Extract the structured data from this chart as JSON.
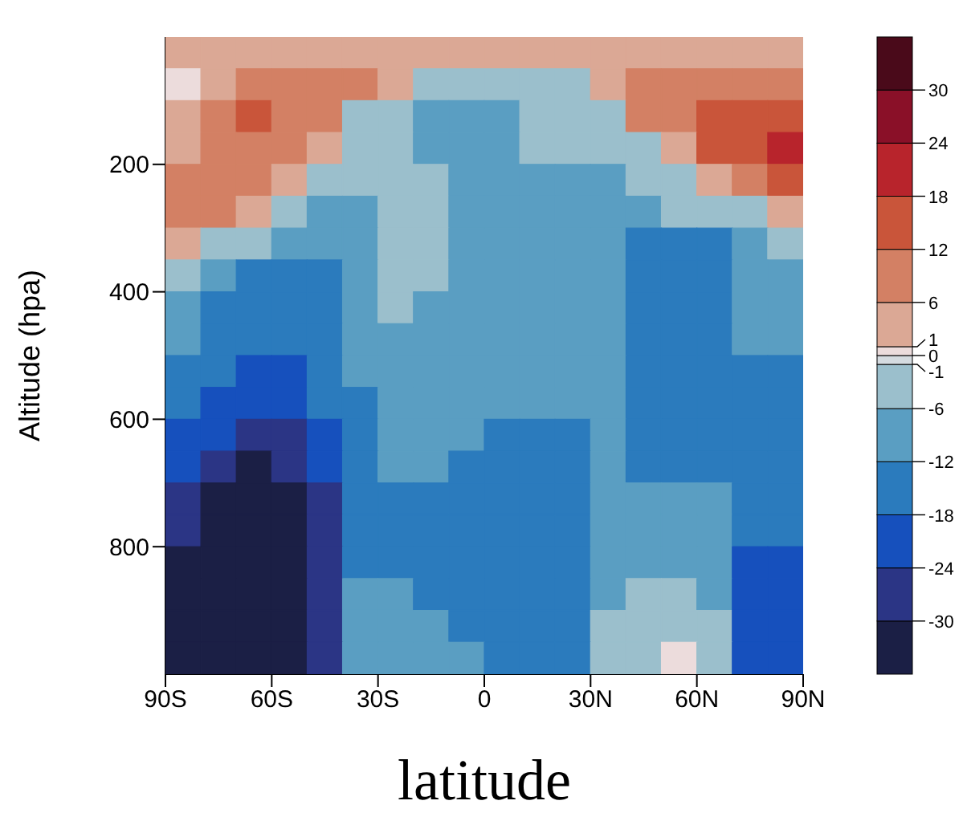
{
  "chart_data": {
    "type": "heatmap",
    "xlabel": "latitude",
    "ylabel": "Altitude (hpa)",
    "xlim": [
      -90,
      90
    ],
    "xticks": [
      {
        "value": -90,
        "label": "90S"
      },
      {
        "value": -60,
        "label": "60S"
      },
      {
        "value": -30,
        "label": "30S"
      },
      0,
      {
        "value": 30,
        "label": "30N"
      },
      {
        "value": 60,
        "label": "60N"
      },
      {
        "value": 90,
        "label": "90N"
      }
    ],
    "ylim": [
      1000,
      0
    ],
    "yticks": [
      200,
      400,
      600,
      800
    ],
    "clim": [
      -36,
      36
    ],
    "cticks": [
      -30,
      -24,
      -18,
      -12,
      -6,
      -1,
      0,
      1,
      6,
      12,
      18,
      24,
      30
    ],
    "colors": [
      "#1b1f45",
      "#2b3585",
      "#1650bd",
      "#2b7bbd",
      "#5a9ec2",
      "#9bbfcc",
      "#d5dbe0",
      "#ecdcdc",
      "#dba895",
      "#d38064",
      "#c9553a",
      "#b8242c",
      "#8a1028",
      "#4a0a1a"
    ],
    "cells": [
      [
        3,
        3,
        3,
        3,
        3,
        3,
        3,
        3,
        3,
        3,
        3,
        3,
        3,
        3,
        3,
        3,
        3,
        3
      ],
      [
        0.5,
        3,
        9,
        9,
        9,
        9,
        3,
        -3,
        -3,
        -3,
        -3,
        -3,
        3,
        9,
        9,
        9,
        9,
        9
      ],
      [
        3,
        9,
        15,
        9,
        9,
        -3,
        -3,
        -9,
        -9,
        -9,
        -3,
        -3,
        -3,
        9,
        9,
        15,
        15,
        15
      ],
      [
        3,
        9,
        9,
        9,
        3,
        -3,
        -3,
        -9,
        -9,
        -9,
        -3,
        -3,
        -3,
        -3,
        3,
        15,
        15,
        21
      ],
      [
        9,
        9,
        9,
        3,
        -3,
        -3,
        -3,
        -3,
        -9,
        -9,
        -9,
        -9,
        -9,
        -3,
        -3,
        3,
        9,
        15
      ],
      [
        9,
        9,
        3,
        -3,
        -9,
        -9,
        -3,
        -3,
        -9,
        -9,
        -9,
        -9,
        -9,
        -9,
        -3,
        -3,
        -3,
        3
      ],
      [
        3,
        -3,
        -3,
        -9,
        -9,
        -9,
        -3,
        -3,
        -9,
        -9,
        -9,
        -9,
        -9,
        -15,
        -15,
        -15,
        -9,
        -3
      ],
      [
        -3,
        -9,
        -15,
        -15,
        -15,
        -9,
        -3,
        -3,
        -9,
        -9,
        -9,
        -9,
        -9,
        -15,
        -15,
        -15,
        -9,
        -9
      ],
      [
        -9,
        -15,
        -15,
        -15,
        -15,
        -9,
        -3,
        -9,
        -9,
        -9,
        -9,
        -9,
        -9,
        -15,
        -15,
        -15,
        -9,
        -9
      ],
      [
        -9,
        -15,
        -15,
        -15,
        -15,
        -9,
        -9,
        -9,
        -9,
        -9,
        -9,
        -9,
        -9,
        -15,
        -15,
        -15,
        -9,
        -9
      ],
      [
        -15,
        -15,
        -21,
        -21,
        -15,
        -9,
        -9,
        -9,
        -9,
        -9,
        -9,
        -9,
        -9,
        -15,
        -15,
        -15,
        -15,
        -15
      ],
      [
        -15,
        -21,
        -21,
        -21,
        -15,
        -15,
        -9,
        -9,
        -9,
        -9,
        -9,
        -9,
        -9,
        -15,
        -15,
        -15,
        -15,
        -15
      ],
      [
        -21,
        -21,
        -27,
        -27,
        -21,
        -15,
        -9,
        -9,
        -9,
        -15,
        -15,
        -15,
        -9,
        -15,
        -15,
        -15,
        -15,
        -15
      ],
      [
        -21,
        -27,
        -33,
        -27,
        -21,
        -15,
        -9,
        -9,
        -15,
        -15,
        -15,
        -15,
        -9,
        -15,
        -15,
        -15,
        -15,
        -15
      ],
      [
        -27,
        -33,
        -33,
        -33,
        -27,
        -15,
        -15,
        -15,
        -15,
        -15,
        -15,
        -15,
        -9,
        -9,
        -9,
        -9,
        -15,
        -15
      ],
      [
        -27,
        -33,
        -33,
        -33,
        -27,
        -15,
        -15,
        -15,
        -15,
        -15,
        -15,
        -15,
        -9,
        -9,
        -9,
        -9,
        -15,
        -15
      ],
      [
        -33,
        -33,
        -33,
        -33,
        -27,
        -15,
        -15,
        -15,
        -15,
        -15,
        -15,
        -15,
        -9,
        -9,
        -9,
        -9,
        -21,
        -21
      ],
      [
        -33,
        -33,
        -33,
        -33,
        -27,
        -9,
        -9,
        -15,
        -15,
        -15,
        -15,
        -15,
        -9,
        -3,
        -3,
        -9,
        -21,
        -21
      ],
      [
        -33,
        -33,
        -33,
        -33,
        -27,
        -9,
        -9,
        -9,
        -15,
        -15,
        -15,
        -15,
        -3,
        -3,
        -3,
        -3,
        -21,
        -21
      ],
      [
        -33,
        -33,
        -33,
        -33,
        -27,
        -9,
        -9,
        -9,
        -9,
        -15,
        -15,
        -15,
        -3,
        -3,
        0.5,
        -3,
        -21,
        -21
      ]
    ]
  }
}
